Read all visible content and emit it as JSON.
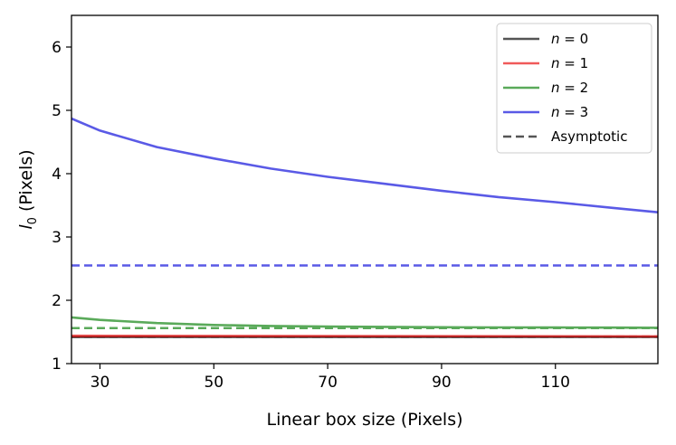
{
  "chart_data": {
    "type": "line",
    "xlabel": "Linear box size (Pixels)",
    "ylabel_symbol": "l",
    "ylabel_subscript": "0",
    "ylabel_unit": "(Pixels)",
    "xlim": [
      25,
      128
    ],
    "ylim": [
      1,
      6.5
    ],
    "xticks": [
      30,
      50,
      70,
      90,
      110
    ],
    "yticks": [
      1,
      2,
      3,
      4,
      5,
      6
    ],
    "grid": false,
    "legend_position": "top-right",
    "series": [
      {
        "name": "n = 0",
        "italic_var": "n",
        "suffix": " = 0",
        "color": "#555555",
        "style": "solid",
        "x": [
          25,
          128
        ],
        "y": [
          1.42,
          1.42
        ]
      },
      {
        "name": "n = 1",
        "italic_var": "n",
        "suffix": " = 1",
        "color": "#f05a5a",
        "style": "solid",
        "x": [
          25,
          128
        ],
        "y": [
          1.44,
          1.43
        ]
      },
      {
        "name": "n = 2",
        "italic_var": "n",
        "suffix": " = 2",
        "color": "#5aaa5a",
        "style": "solid",
        "x": [
          25,
          30,
          40,
          50,
          60,
          70,
          80,
          90,
          100,
          110,
          120,
          128
        ],
        "y": [
          1.73,
          1.69,
          1.64,
          1.61,
          1.595,
          1.585,
          1.58,
          1.575,
          1.572,
          1.57,
          1.568,
          1.566
        ]
      },
      {
        "name": "n = 3",
        "italic_var": "n",
        "suffix": " = 3",
        "color": "#5a5ae6",
        "style": "solid",
        "x": [
          25,
          30,
          40,
          50,
          60,
          70,
          80,
          90,
          100,
          110,
          120,
          128
        ],
        "y": [
          4.87,
          4.68,
          4.42,
          4.24,
          4.08,
          3.95,
          3.84,
          3.73,
          3.63,
          3.55,
          3.46,
          3.39
        ]
      },
      {
        "name": "Asymptotic",
        "color": "#555555",
        "style": "dashed",
        "x": [
          25,
          128
        ],
        "y": [
          1.42,
          1.42
        ]
      }
    ],
    "asymptotes": [
      {
        "color": "#f05a5a",
        "y": 1.43
      },
      {
        "color": "#5aaa5a",
        "y": 1.56
      },
      {
        "color": "#5a5ae6",
        "y": 2.55
      }
    ]
  }
}
